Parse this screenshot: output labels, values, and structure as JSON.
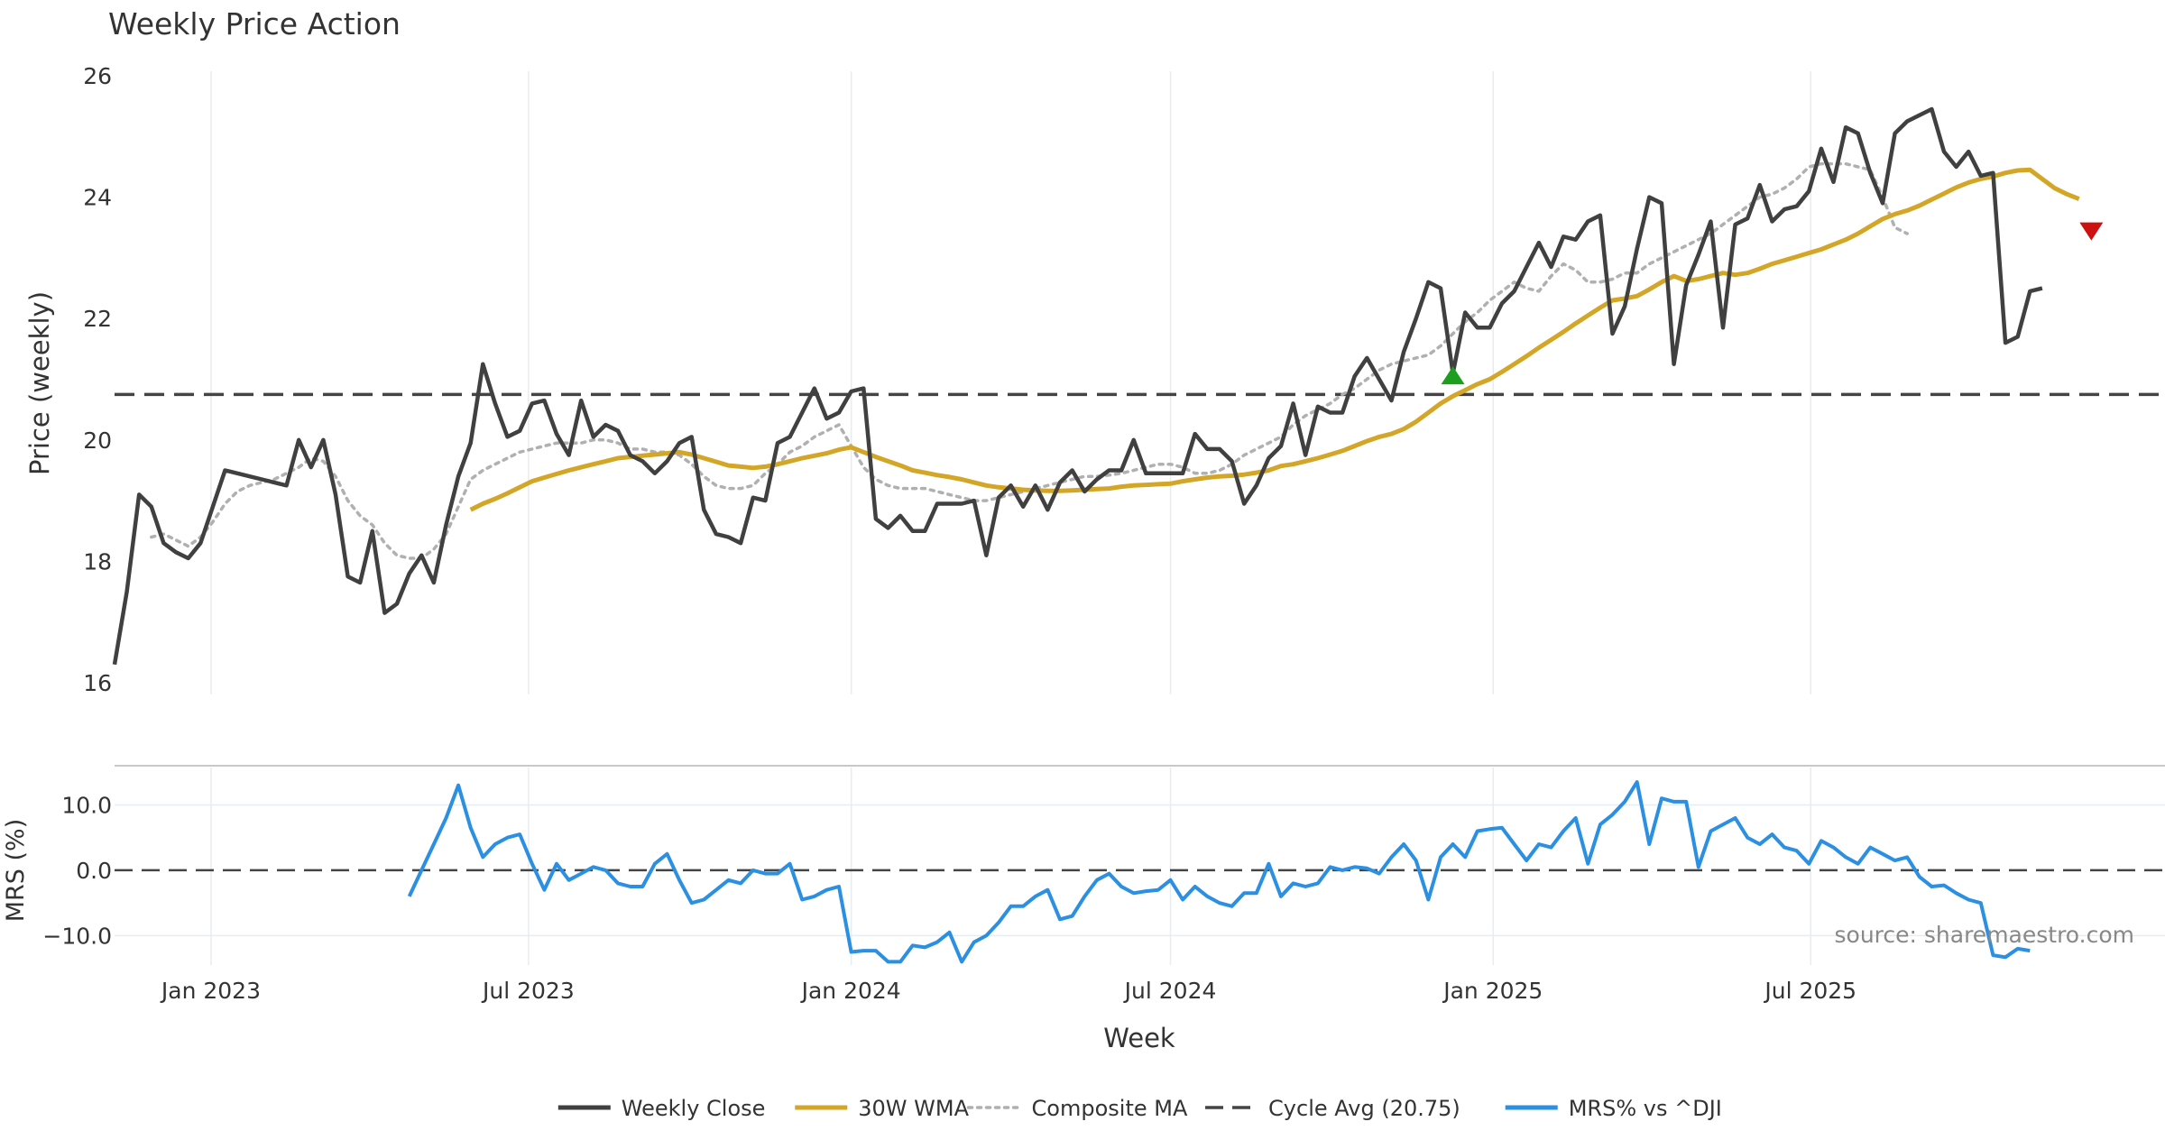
{
  "colors": {
    "close": "#404040",
    "wma": "#d4a628",
    "composite": "#b0b0b0",
    "cycle": "#444444",
    "mrs": "#2b8fe2",
    "buy": "#1e9e1e",
    "sell": "#cc1111",
    "grid": "#e6edf2",
    "separator": "#c8c8c8",
    "text": "#333333",
    "source": "#888888"
  },
  "chart_data": [
    {
      "type": "line",
      "title": "Weekly Price Action",
      "xlabel": "",
      "ylabel": "Price (weekly)",
      "xlim": [
        "2022-11-07",
        "2026-01-19"
      ],
      "ylim": [
        16,
        26
      ],
      "yticks": [
        16,
        18,
        20,
        22,
        24,
        26
      ],
      "xtick_dates": [
        "2023-01-01",
        "2023-07-01",
        "2024-01-01",
        "2024-07-01",
        "2025-01-01",
        "2025-07-01"
      ],
      "grid": "vertical",
      "start_date": "2022-11-07",
      "cycle_avg": 20.75,
      "series": [
        {
          "name": "Weekly Close",
          "start_index": 0,
          "values": [
            16.3,
            17.5,
            19.1,
            18.9,
            18.3,
            18.15,
            18.05,
            18.3,
            18.9,
            19.5,
            19.45,
            19.4,
            19.35,
            19.3,
            19.25,
            20.0,
            19.55,
            20.0,
            19.1,
            17.75,
            17.65,
            18.5,
            17.15,
            17.3,
            17.8,
            18.1,
            17.65,
            18.6,
            19.4,
            19.95,
            21.25,
            20.6,
            20.05,
            20.15,
            20.6,
            20.65,
            20.1,
            19.75,
            20.65,
            20.05,
            20.25,
            20.15,
            19.75,
            19.65,
            19.45,
            19.65,
            19.95,
            20.05,
            18.85,
            18.45,
            18.4,
            18.3,
            19.05,
            19.0,
            19.95,
            20.05,
            20.45,
            20.85,
            20.35,
            20.45,
            20.8,
            20.85,
            18.7,
            18.55,
            18.75,
            18.5,
            18.5,
            18.95,
            18.95,
            18.95,
            19.0,
            18.1,
            19.05,
            19.25,
            18.9,
            19.25,
            18.85,
            19.3,
            19.5,
            19.15,
            19.35,
            19.5,
            19.5,
            20.0,
            19.45,
            19.45,
            19.45,
            19.45,
            20.1,
            19.85,
            19.85,
            19.65,
            18.95,
            19.25,
            19.7,
            19.9,
            20.6,
            19.75,
            20.55,
            20.45,
            20.45,
            21.05,
            21.35,
            21.0,
            20.65,
            21.45,
            22.0,
            22.6,
            22.5,
            21.1,
            22.1,
            21.85,
            21.85,
            22.25,
            22.45,
            22.85,
            23.25,
            22.85,
            23.35,
            23.3,
            23.6,
            23.7,
            21.75,
            22.2,
            23.15,
            24.0,
            23.9,
            21.25,
            22.55,
            23.05,
            23.6,
            21.85,
            23.55,
            23.65,
            24.2,
            23.6,
            23.8,
            23.85,
            24.1,
            24.8,
            24.25,
            25.15,
            25.05,
            24.4,
            23.9,
            25.05,
            25.25,
            25.35,
            25.45,
            24.75,
            24.5,
            24.75,
            24.35,
            24.4,
            21.6,
            21.7,
            22.45,
            22.5
          ]
        },
        {
          "name": "30W WMA",
          "start_index": 29,
          "values": [
            18.85,
            18.95,
            19.03,
            19.12,
            19.22,
            19.32,
            19.38,
            19.44,
            19.5,
            19.55,
            19.6,
            19.65,
            19.7,
            19.72,
            19.74,
            19.76,
            19.78,
            19.8,
            19.76,
            19.7,
            19.64,
            19.58,
            19.56,
            19.54,
            19.56,
            19.6,
            19.65,
            19.7,
            19.74,
            19.78,
            19.84,
            19.88,
            19.8,
            19.72,
            19.65,
            19.58,
            19.5,
            19.46,
            19.42,
            19.39,
            19.35,
            19.3,
            19.25,
            19.22,
            19.2,
            19.18,
            19.17,
            19.16,
            19.16,
            19.17,
            19.18,
            19.19,
            19.2,
            19.23,
            19.25,
            19.26,
            19.27,
            19.28,
            19.32,
            19.35,
            19.38,
            19.4,
            19.41,
            19.43,
            19.46,
            19.5,
            19.57,
            19.6,
            19.65,
            19.7,
            19.76,
            19.82,
            19.9,
            19.98,
            20.05,
            20.1,
            20.18,
            20.3,
            20.45,
            20.6,
            20.72,
            20.82,
            20.92,
            21.0,
            21.12,
            21.25,
            21.38,
            21.52,
            21.65,
            21.78,
            21.92,
            22.05,
            22.18,
            22.3,
            22.33,
            22.37,
            22.48,
            22.6,
            22.7,
            22.62,
            22.65,
            22.7,
            22.75,
            22.72,
            22.75,
            22.82,
            22.9,
            22.96,
            23.02,
            23.08,
            23.14,
            23.22,
            23.3,
            23.4,
            23.52,
            23.64,
            23.72,
            23.78,
            23.86,
            23.96,
            24.06,
            24.16,
            24.24,
            24.3,
            24.34,
            24.4,
            24.44,
            24.45,
            24.3,
            24.15,
            24.05,
            23.97
          ]
        },
        {
          "name": "Composite MA",
          "start_index": 3,
          "values": [
            18.4,
            18.45,
            18.35,
            18.25,
            18.4,
            18.65,
            18.95,
            19.15,
            19.25,
            19.3,
            19.35,
            19.45,
            19.55,
            19.7,
            19.65,
            19.4,
            19.0,
            18.75,
            18.6,
            18.3,
            18.1,
            18.05,
            18.05,
            18.2,
            18.45,
            18.9,
            19.35,
            19.5,
            19.6,
            19.7,
            19.8,
            19.85,
            19.9,
            19.95,
            19.95,
            19.95,
            20.0,
            20.0,
            19.95,
            19.85,
            19.85,
            19.8,
            19.8,
            19.75,
            19.6,
            19.4,
            19.25,
            19.2,
            19.2,
            19.25,
            19.45,
            19.6,
            19.8,
            19.9,
            20.05,
            20.15,
            20.25,
            19.9,
            19.55,
            19.35,
            19.25,
            19.2,
            19.2,
            19.2,
            19.15,
            19.1,
            19.05,
            19.0,
            19.0,
            19.05,
            19.1,
            19.15,
            19.2,
            19.25,
            19.3,
            19.35,
            19.4,
            19.4,
            19.42,
            19.45,
            19.5,
            19.55,
            19.6,
            19.6,
            19.55,
            19.45,
            19.45,
            19.5,
            19.6,
            19.75,
            19.85,
            19.95,
            20.05,
            20.25,
            20.4,
            20.5,
            20.6,
            20.75,
            20.85,
            21.0,
            21.15,
            21.25,
            21.3,
            21.35,
            21.4,
            21.55,
            21.75,
            21.95,
            22.1,
            22.3,
            22.45,
            22.6,
            22.5,
            22.45,
            22.7,
            22.9,
            22.8,
            22.6,
            22.6,
            22.65,
            22.75,
            22.75,
            22.9,
            23.0,
            23.1,
            23.2,
            23.3,
            23.4,
            23.55,
            23.7,
            23.85,
            24.0,
            24.05,
            24.15,
            24.3,
            24.5,
            24.55,
            24.55,
            24.55,
            24.5,
            24.45,
            24.0,
            23.5,
            23.4
          ]
        }
      ],
      "annotations": [
        {
          "type": "buy-marker",
          "week_index": 109,
          "y": 21.05
        },
        {
          "type": "sell-marker",
          "week_index": 161,
          "y": 23.45
        }
      ]
    },
    {
      "type": "line",
      "title": "",
      "xlabel": "Week",
      "ylabel": "MRS (%)",
      "ylim": [
        -14.5,
        16
      ],
      "yticks": [
        10,
        0,
        -10
      ],
      "ytick_labels": [
        "10.0",
        "0.0",
        "−10.0"
      ],
      "xtick_labels": [
        "Jan 2023",
        "Jul 2023",
        "Jan 2024",
        "Jul 2024",
        "Jan 2025",
        "Jul 2025"
      ],
      "zero_line": 0,
      "series": [
        {
          "name": "MRS% vs ^DJI",
          "start_index": 24,
          "values": [
            -4,
            0,
            4,
            8,
            13,
            6.5,
            2,
            4,
            5,
            5.5,
            1,
            -3,
            1,
            -1.5,
            -0.5,
            0.5,
            0,
            -2,
            -2.5,
            -2.5,
            1,
            2.5,
            -1.5,
            -5,
            -4.5,
            -3,
            -1.5,
            -2,
            0,
            -0.5,
            -0.5,
            1,
            -4.5,
            -4,
            -3,
            -2.5,
            -12.5,
            -12.3,
            -12.3,
            -14,
            -14,
            -11.5,
            -11.8,
            -11,
            -9.5,
            -14,
            -11,
            -10,
            -8,
            -5.5,
            -5.5,
            -4,
            -3,
            -7.5,
            -7,
            -4,
            -1.5,
            -0.5,
            -2.5,
            -3.5,
            -3.2,
            -3,
            -1.5,
            -4.5,
            -2.5,
            -4,
            -5,
            -5.5,
            -3.5,
            -3.5,
            1,
            -4,
            -2,
            -2.5,
            -2,
            0.5,
            0,
            0.5,
            0.3,
            -0.5,
            2,
            4,
            1.5,
            -4.5,
            2,
            4,
            2,
            6,
            6.3,
            6.5,
            4,
            1.5,
            4,
            3.5,
            6,
            8,
            1,
            7,
            8.5,
            10.5,
            13.5,
            4,
            11,
            10.5,
            10.5,
            0.5,
            6,
            7,
            8,
            5,
            4,
            5.5,
            3.5,
            3,
            1,
            4.5,
            3.5,
            2,
            1,
            3.5,
            2.5,
            1.5,
            2,
            -1,
            -2.5,
            -2.3,
            -3.5,
            -4.5,
            -5,
            -13,
            -13.3,
            -12,
            -12.3
          ]
        }
      ]
    }
  ],
  "legend": {
    "items": [
      {
        "label": "Weekly Close",
        "style": "solid",
        "color": "#404040"
      },
      {
        "label": "30W WMA",
        "style": "solid",
        "color": "#d4a628"
      },
      {
        "label": "Composite MA",
        "style": "dotted",
        "color": "#b0b0b0"
      },
      {
        "label": "Cycle Avg (20.75)",
        "style": "dashed",
        "color": "#444444"
      },
      {
        "label": "MRS% vs ^DJI",
        "style": "solid",
        "color": "#2b8fe2"
      }
    ]
  },
  "source_text": "source: sharemaestro.com"
}
